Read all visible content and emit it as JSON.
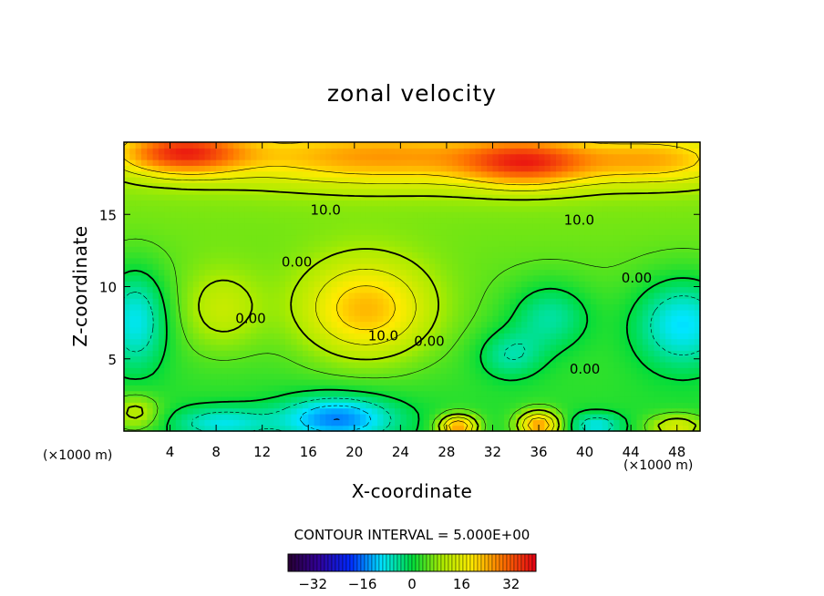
{
  "chart_data": {
    "type": "heatmap",
    "title": "zonal velocity",
    "xlabel": "X-coordinate",
    "ylabel": "Z-coordinate",
    "x_unit_note": "(×1000 m)",
    "xlim": [
      0,
      50
    ],
    "ylim": [
      0,
      20
    ],
    "x_ticks": [
      4,
      8,
      12,
      16,
      20,
      24,
      28,
      32,
      36,
      40,
      44,
      48
    ],
    "y_ticks": [
      5,
      10,
      15
    ],
    "contour_interval_text": "CONTOUR INTERVAL = 5.000E+00",
    "contour_labels": [
      {
        "text": "10.0",
        "x": 17.5,
        "z": 15.3
      },
      {
        "text": "10.0",
        "x": 39.5,
        "z": 14.6
      },
      {
        "text": "0.00",
        "x": 15.0,
        "z": 11.7
      },
      {
        "text": "0.00",
        "x": 44.5,
        "z": 10.6
      },
      {
        "text": "0.00",
        "x": 11.0,
        "z": 7.8
      },
      {
        "text": "10.0",
        "x": 22.5,
        "z": 6.6
      },
      {
        "text": "0.00",
        "x": 26.5,
        "z": 6.2
      },
      {
        "text": "0.00",
        "x": 40.0,
        "z": 4.3
      }
    ],
    "field_features": [
      {
        "x": 5,
        "z": 19.3,
        "value": 26,
        "sx": 4,
        "sz": 1.1
      },
      {
        "x": 22,
        "z": 19.0,
        "value": 18,
        "sx": 9,
        "sz": 1.4
      },
      {
        "x": 35,
        "z": 18.6,
        "value": 22,
        "sx": 4,
        "sz": 1.2
      },
      {
        "x": 46,
        "z": 18.8,
        "value": 16,
        "sx": 5,
        "sz": 1.2
      },
      {
        "x": 21,
        "z": 8.4,
        "value": 19,
        "sx": 4,
        "sz": 2.4
      },
      {
        "x": 8.5,
        "z": 8.4,
        "value": 8,
        "sx": 2.5,
        "sz": 2.0
      },
      {
        "x": 1,
        "z": 7.8,
        "value": -13,
        "sx": 2,
        "sz": 2.5
      },
      {
        "x": 48.5,
        "z": 7.5,
        "value": -14,
        "sx": 3,
        "sz": 2.2
      },
      {
        "x": 37,
        "z": 8.0,
        "value": -9,
        "sx": 2.5,
        "sz": 1.7
      },
      {
        "x": 33.5,
        "z": 5.3,
        "value": -8,
        "sx": 2,
        "sz": 1.2
      },
      {
        "x": 18.5,
        "z": 0.9,
        "value": -17,
        "sx": 3.5,
        "sz": 1.1
      },
      {
        "x": 8.5,
        "z": 0.6,
        "value": -10,
        "sx": 3,
        "sz": 0.8
      },
      {
        "x": 41,
        "z": 0.4,
        "value": -10,
        "sx": 1.6,
        "sz": 0.6
      },
      {
        "x": 29,
        "z": 0.3,
        "value": 24,
        "sx": 1.2,
        "sz": 0.6
      },
      {
        "x": 36,
        "z": 0.4,
        "value": 24,
        "sx": 1.3,
        "sz": 0.7
      },
      {
        "x": 48,
        "z": 0.3,
        "value": 13,
        "sx": 1.8,
        "sz": 0.6
      },
      {
        "x": 1,
        "z": 1.3,
        "value": 10,
        "sx": 1.5,
        "sz": 0.9
      }
    ],
    "colorbar": {
      "range": [
        -40,
        40
      ],
      "ticks": [
        -32,
        -16,
        0,
        16,
        32
      ]
    },
    "colors": {
      "background_level": 5
    }
  }
}
